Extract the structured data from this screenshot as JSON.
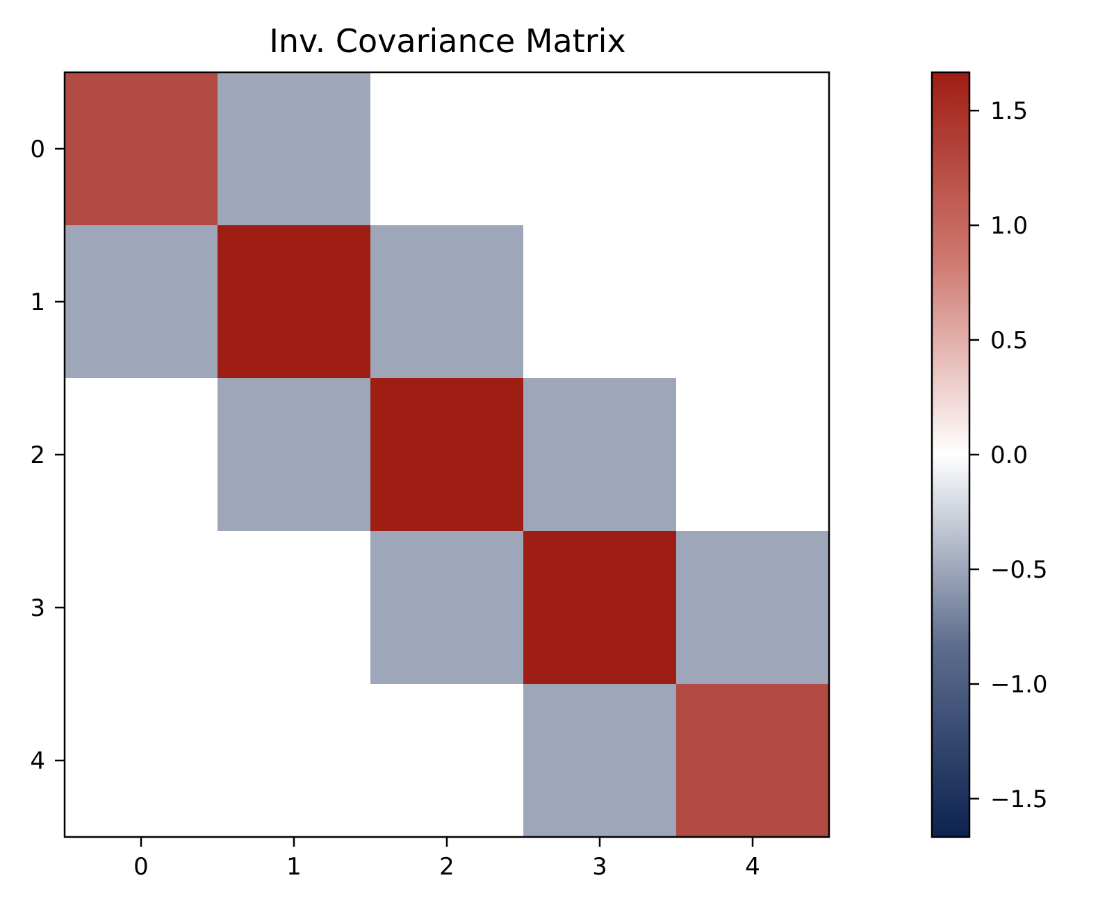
{
  "chart_data": {
    "type": "heatmap",
    "title": "Inv. Covariance Matrix",
    "xlabel": "",
    "ylabel": "",
    "x_categories": [
      "0",
      "1",
      "2",
      "3",
      "4"
    ],
    "y_categories": [
      "0",
      "1",
      "2",
      "3",
      "4"
    ],
    "values": [
      [
        1.333,
        -0.667,
        0.0,
        0.0,
        0.0
      ],
      [
        -0.667,
        1.667,
        -0.667,
        0.0,
        0.0
      ],
      [
        0.0,
        -0.667,
        1.667,
        -0.667,
        0.0
      ],
      [
        0.0,
        0.0,
        -0.667,
        1.667,
        -0.667
      ],
      [
        0.0,
        0.0,
        0.0,
        -0.667,
        1.333
      ]
    ],
    "colorbar": {
      "vmin": -1.667,
      "vmax": 1.667,
      "ticks": [
        1.5,
        1.0,
        0.5,
        0.0,
        -0.5,
        -1.0,
        -1.5
      ],
      "tick_labels": [
        "1.5",
        "1.0",
        "0.5",
        "0.0",
        "−0.5",
        "−1.0",
        "−1.5"
      ],
      "colormap": [
        "#0c2250",
        "#ffffff",
        "#9f1e14"
      ]
    }
  }
}
